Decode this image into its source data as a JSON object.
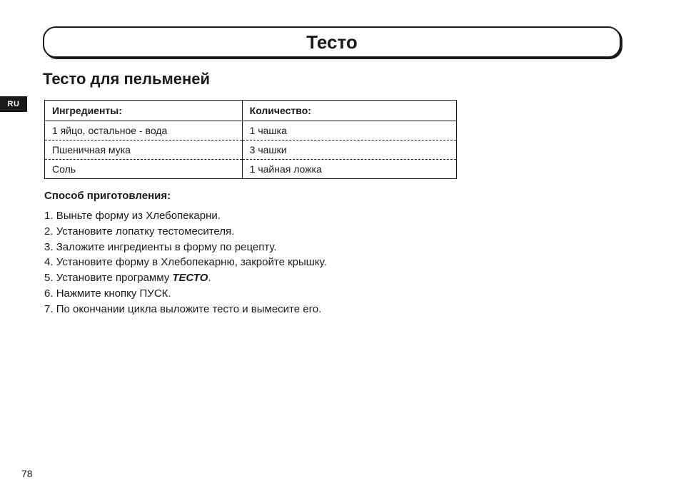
{
  "lang_tab": "RU",
  "title": "Тесто",
  "subtitle": "Тесто для пельменей",
  "table": {
    "header_ingredient": "Ингредиенты:",
    "header_quantity": "Количество:",
    "rows": [
      {
        "ingredient": "1 яйцо, остальное - вода",
        "quantity": "1 чашка"
      },
      {
        "ingredient": "Пшеничная мука",
        "quantity": "3 чашки"
      },
      {
        "ingredient": "Соль",
        "quantity": "1 чайная ложка"
      }
    ]
  },
  "method_heading": "Способ приготовления:",
  "steps": [
    {
      "n": "1.",
      "text": "Выньте форму из Хлебопекарни."
    },
    {
      "n": "2.",
      "text": "Установите лопатку тестомесителя."
    },
    {
      "n": "3.",
      "text": "Заложите ингредиенты в форму по рецепту."
    },
    {
      "n": "4.",
      "text": "Установите форму в Хлебопекарню, закройте крышку."
    },
    {
      "n": "5.",
      "prefix": "Установите программу ",
      "emph": "ТЕСТО",
      "suffix": "."
    },
    {
      "n": "6.",
      "text": "Нажмите кнопку ПУСК."
    },
    {
      "n": "7.",
      "text": "По окончании цикла выложите тесто и вымесите его."
    }
  ],
  "page_number": "78",
  "colors": {
    "text": "#1a1a1a",
    "background": "#ffffff",
    "tab_bg": "#1a1a1a",
    "tab_text": "#ffffff"
  }
}
